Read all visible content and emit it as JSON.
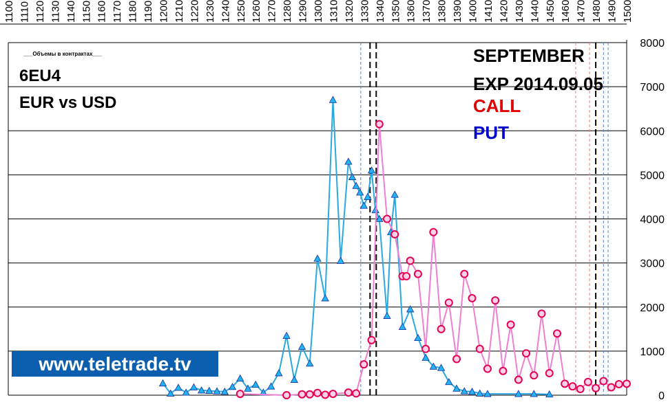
{
  "labels": {
    "title_small": "___Объемы в контрактах___",
    "instrument": "6EU4",
    "pair": "EUR vs USD",
    "month": "SEPTEMBER",
    "expiry": "EXP 2014.09.05",
    "call": "CALL",
    "put": "PUT",
    "brand": "www.teletrade.tv"
  },
  "colors": {
    "call_line": "#ef7fd0",
    "call_marker": "#e60050",
    "call_marker_dark": "#e00000",
    "put_line": "#2aa8e0",
    "put_marker": "#22b4f0",
    "put_dark": "#1a2fa0",
    "grid": "#000000",
    "brand_bg": "#0b5fae"
  },
  "chart_data": {
    "type": "line",
    "x_ticks": [
      1100,
      1110,
      1120,
      1130,
      1140,
      1150,
      1160,
      1170,
      1180,
      1190,
      1200,
      1210,
      1220,
      1230,
      1240,
      1250,
      1260,
      1270,
      1280,
      1290,
      1300,
      1310,
      1320,
      1330,
      1340,
      1350,
      1360,
      1370,
      1380,
      1390,
      1400,
      1410,
      1420,
      1430,
      1440,
      1450,
      1460,
      1470,
      1480,
      1490,
      1500
    ],
    "y_ticks": [
      0,
      1000,
      2000,
      3000,
      4000,
      5000,
      6000,
      7000,
      8000
    ],
    "xlim": [
      1100,
      1500
    ],
    "ylim": [
      0,
      8000
    ],
    "vlines": [
      {
        "x": 1328,
        "style": "dashed",
        "color": "#4a7fd0"
      },
      {
        "x": 1334,
        "style": "dashed",
        "color": "#000000"
      },
      {
        "x": 1338,
        "style": "dashed",
        "color": "#000000"
      },
      {
        "x": 1467,
        "style": "dashed",
        "color": "#e08080"
      },
      {
        "x": 1476,
        "style": "dashed",
        "color": "#e08080"
      },
      {
        "x": 1480,
        "style": "dashed",
        "color": "#000000"
      },
      {
        "x": 1485,
        "style": "dashed",
        "color": "#4a7fd0"
      },
      {
        "x": 1488,
        "style": "dashed",
        "color": "#4a7fd0"
      }
    ],
    "series": [
      {
        "name": "PUT",
        "x": [
          1200,
          1205,
          1210,
          1215,
          1220,
          1225,
          1230,
          1235,
          1240,
          1245,
          1250,
          1255,
          1260,
          1265,
          1270,
          1275,
          1280,
          1285,
          1290,
          1295,
          1300,
          1305,
          1310,
          1315,
          1320,
          1322.5,
          1325,
          1327.5,
          1330,
          1332.5,
          1335,
          1337.5,
          1340,
          1345,
          1347.5,
          1350,
          1355,
          1360,
          1365,
          1370,
          1375,
          1380,
          1385,
          1390,
          1395,
          1400,
          1405,
          1410,
          1430,
          1440,
          1450
        ],
        "y": [
          270,
          40,
          170,
          60,
          180,
          110,
          100,
          90,
          80,
          190,
          380,
          150,
          240,
          60,
          200,
          500,
          1350,
          350,
          1100,
          720,
          3100,
          2200,
          6700,
          3050,
          5300,
          4950,
          4750,
          4600,
          4300,
          4500,
          5100,
          4200,
          4000,
          1800,
          3700,
          4550,
          1550,
          1950,
          1300,
          850,
          650,
          620,
          300,
          150,
          90,
          80,
          40,
          30,
          30,
          30,
          20
        ]
      },
      {
        "name": "CALL",
        "x": [
          1250,
          1280,
          1290,
          1295,
          1300,
          1305,
          1310,
          1320,
          1325,
          1330,
          1335,
          1340,
          1345,
          1350,
          1355,
          1357.5,
          1360,
          1365,
          1370,
          1375,
          1380,
          1385,
          1390,
          1395,
          1400,
          1405,
          1410,
          1415,
          1420,
          1425,
          1430,
          1435,
          1440,
          1445,
          1450,
          1455,
          1460,
          1465,
          1470,
          1475,
          1480,
          1485,
          1490,
          1495,
          1500
        ],
        "y": [
          30,
          0,
          20,
          20,
          50,
          10,
          30,
          60,
          40,
          700,
          1250,
          6150,
          4000,
          3650,
          2700,
          2700,
          3050,
          2750,
          1050,
          3700,
          1500,
          2100,
          820,
          2750,
          2200,
          1050,
          600,
          2150,
          550,
          1600,
          350,
          950,
          450,
          1850,
          500,
          1400,
          260,
          200,
          140,
          300,
          160,
          320,
          180,
          250,
          260
        ]
      }
    ]
  }
}
